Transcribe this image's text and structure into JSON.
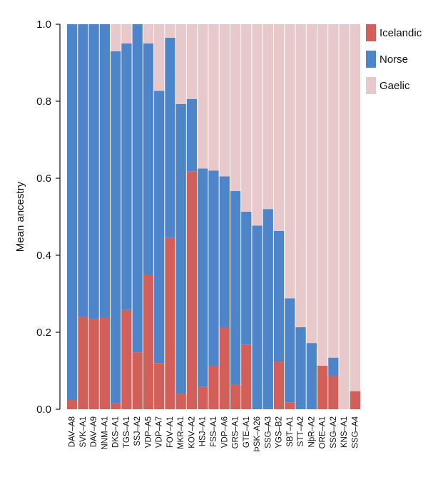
{
  "chart_data": {
    "type": "bar",
    "stacked": true,
    "title": "",
    "xlabel": "",
    "ylabel": "Mean ancestry",
    "ylim": [
      0,
      1.0
    ],
    "yticks": [
      "0.0",
      "0.2",
      "0.4",
      "0.6",
      "0.8",
      "1.0"
    ],
    "grid": false,
    "legend_position": "top-right",
    "categories": [
      "DAV–A8",
      "SVK–A1",
      "DAV–A9",
      "NNM–A1",
      "DKS–A1",
      "TGS–A1",
      "SSJ–A2",
      "VDP–A5",
      "VDP–A7",
      "FOV–A1",
      "MKR–A1",
      "KOV–A2",
      "HSJ–A1",
      "FSS–A1",
      "VDP–A6",
      "GRS–A1",
      "GTE–A1",
      "ÞSK–A26",
      "SSG–A3",
      "YGS–B2",
      "SBT–A1",
      "STT–A2",
      "NþR–A2",
      "ORE–A1",
      "SSG–A2",
      "KNS–A1",
      "SSG–A4"
    ],
    "series": [
      {
        "name": "Icelandic",
        "color": "#d1605a",
        "values": [
          0.025,
          0.24,
          0.235,
          0.238,
          0.015,
          0.258,
          0.148,
          0.35,
          0.12,
          0.445,
          0.04,
          0.618,
          0.058,
          0.113,
          0.212,
          0.064,
          0.168,
          0.0,
          0.0,
          0.124,
          0.018,
          0.0,
          0.0,
          0.113,
          0.087,
          0.0,
          0.047
        ]
      },
      {
        "name": "Norse",
        "color": "#4e85c8",
        "values": [
          0.975,
          0.76,
          0.765,
          0.762,
          0.915,
          0.692,
          0.852,
          0.6,
          0.707,
          0.52,
          0.753,
          0.188,
          0.567,
          0.507,
          0.393,
          0.503,
          0.345,
          0.477,
          0.52,
          0.339,
          0.27,
          0.213,
          0.172,
          0.0,
          0.047,
          0.0,
          0.0
        ]
      },
      {
        "name": "Gaelic",
        "color": "#e7c9cb",
        "values": [
          0.0,
          0.0,
          0.0,
          0.0,
          0.07,
          0.05,
          0.0,
          0.05,
          0.173,
          0.035,
          0.207,
          0.194,
          0.375,
          0.38,
          0.395,
          0.433,
          0.487,
          0.523,
          0.48,
          0.537,
          0.712,
          0.787,
          0.828,
          0.887,
          0.866,
          1.0,
          0.953
        ]
      }
    ]
  }
}
